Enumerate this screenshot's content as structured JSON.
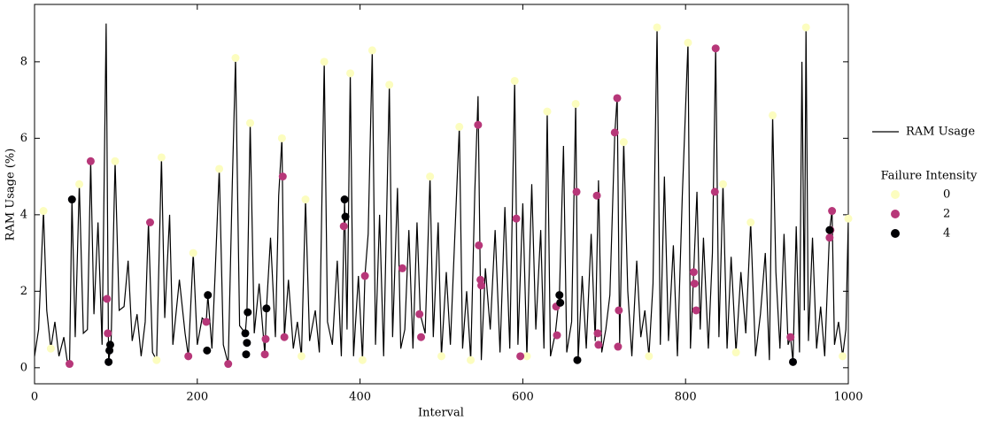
{
  "chart_data": {
    "type": "line",
    "xlabel": "Interval",
    "ylabel": "RAM Usage (%)",
    "xlim": [
      0,
      1000
    ],
    "ylim": [
      -0.42,
      9.5
    ],
    "xticks": [
      0,
      200,
      400,
      600,
      800,
      1000
    ],
    "yticks": [
      0,
      2,
      4,
      6,
      8
    ],
    "legend_title": "Failure Intensity",
    "series": [
      {
        "name": "RAM Usage",
        "kind": "line",
        "color": "#000000",
        "x": [
          0,
          5,
          11,
          15,
          20,
          25,
          30,
          36,
          40,
          43,
          46,
          50,
          55,
          60,
          65,
          69,
          73,
          78,
          83,
          88,
          91,
          94,
          99,
          104,
          110,
          115,
          120,
          126,
          131,
          136,
          140,
          145,
          150,
          156,
          160,
          166,
          170,
          178,
          185,
          189,
          195,
          200,
          206,
          211,
          213,
          218,
          222,
          227,
          232,
          238,
          243,
          247,
          252,
          259,
          261,
          265,
          270,
          276,
          283,
          285,
          290,
          296,
          300,
          304,
          307,
          312,
          318,
          323,
          328,
          333,
          338,
          345,
          350,
          356,
          360,
          366,
          372,
          377,
          381,
          384,
          388,
          392,
          398,
          403,
          406,
          410,
          415,
          419,
          424,
          429,
          436,
          440,
          446,
          450,
          455,
          460,
          465,
          470,
          474,
          480,
          486,
          490,
          496,
          500,
          506,
          511,
          516,
          522,
          526,
          531,
          536,
          541,
          545,
          549,
          554,
          560,
          566,
          572,
          578,
          584,
          590,
          594,
          600,
          605,
          611,
          616,
          622,
          626,
          630,
          634,
          640,
          645,
          650,
          654,
          660,
          665,
          668,
          673,
          678,
          684,
          689,
          693,
          697,
          702,
          707,
          713,
          716,
          719,
          724,
          729,
          734,
          740,
          745,
          750,
          755,
          760,
          765,
          769,
          774,
          779,
          785,
          790,
          796,
          803,
          806,
          810,
          814,
          818,
          822,
          828,
          833,
          837,
          841,
          846,
          851,
          856,
          862,
          868,
          874,
          880,
          886,
          892,
          898,
          903,
          907,
          911,
          916,
          921,
          926,
          929,
          932,
          936,
          940,
          943,
          946,
          948,
          951,
          956,
          961,
          966,
          971,
          977,
          980,
          983,
          988,
          993,
          997,
          1000
        ],
        "values": [
          0.3,
          1.0,
          4.1,
          1.5,
          0.5,
          1.2,
          0.3,
          0.8,
          0.2,
          0.1,
          4.4,
          0.8,
          4.8,
          0.9,
          1.0,
          5.4,
          1.4,
          3.8,
          0.6,
          9.0,
          0.15,
          0.6,
          5.4,
          1.5,
          1.6,
          2.8,
          0.7,
          1.4,
          0.3,
          1.2,
          3.8,
          0.4,
          0.2,
          5.5,
          1.3,
          4.0,
          0.6,
          2.3,
          0.9,
          0.3,
          3.0,
          0.6,
          1.3,
          1.2,
          1.9,
          0.5,
          2.5,
          5.2,
          0.6,
          0.1,
          4.8,
          8.1,
          1.1,
          0.9,
          1.45,
          6.4,
          0.9,
          2.2,
          0.35,
          1.55,
          3.4,
          0.8,
          4.5,
          6.0,
          0.8,
          2.3,
          0.5,
          1.2,
          0.3,
          4.4,
          0.7,
          1.5,
          0.4,
          8.0,
          1.2,
          0.6,
          2.8,
          0.3,
          4.4,
          1.0,
          7.7,
          0.3,
          2.4,
          0.2,
          2.4,
          3.5,
          8.3,
          0.6,
          4.0,
          0.3,
          7.4,
          0.8,
          4.7,
          0.5,
          1.0,
          3.6,
          0.5,
          3.8,
          1.4,
          0.9,
          5.0,
          0.8,
          3.8,
          0.3,
          2.5,
          0.6,
          3.2,
          6.3,
          0.5,
          2.0,
          0.2,
          4.6,
          7.1,
          0.2,
          2.6,
          1.0,
          3.6,
          0.4,
          4.2,
          0.5,
          7.5,
          0.6,
          4.3,
          0.3,
          4.8,
          1.0,
          3.6,
          0.5,
          6.7,
          0.3,
          0.9,
          1.9,
          5.8,
          0.4,
          1.2,
          6.9,
          0.2,
          2.4,
          0.5,
          3.5,
          0.7,
          4.9,
          0.4,
          1.0,
          1.9,
          6.1,
          7.1,
          0.6,
          5.9,
          2.0,
          0.3,
          2.8,
          0.8,
          1.5,
          0.3,
          2.2,
          8.9,
          0.6,
          5.0,
          0.7,
          3.2,
          0.3,
          4.5,
          8.5,
          0.5,
          2.5,
          4.6,
          1.0,
          3.4,
          0.5,
          3.0,
          8.4,
          0.8,
          4.8,
          0.5,
          2.9,
          0.4,
          2.5,
          0.9,
          3.8,
          0.3,
          1.4,
          3.0,
          0.2,
          6.6,
          2.5,
          0.5,
          3.5,
          0.6,
          0.8,
          0.15,
          3.7,
          0.4,
          8.0,
          1.5,
          8.9,
          0.7,
          3.4,
          0.5,
          1.6,
          0.3,
          3.6,
          4.1,
          0.6,
          1.2,
          0.3,
          1.0,
          3.9
        ]
      },
      {
        "name": "0",
        "kind": "scatter",
        "color": "#fcfdbf",
        "x": [
          11,
          55,
          99,
          156,
          195,
          227,
          247,
          265,
          304,
          333,
          356,
          388,
          415,
          436,
          486,
          522,
          590,
          630,
          665,
          724,
          765,
          803,
          846,
          880,
          907,
          948,
          1000,
          20,
          150,
          328,
          403,
          500,
          536,
          605,
          755,
          862,
          993
        ],
        "values": [
          4.1,
          4.8,
          5.4,
          5.5,
          3.0,
          5.2,
          8.1,
          6.4,
          6.0,
          4.4,
          8.0,
          7.7,
          8.3,
          7.4,
          5.0,
          6.3,
          7.5,
          6.7,
          6.9,
          5.9,
          8.9,
          8.5,
          4.8,
          3.8,
          6.6,
          8.9,
          3.9,
          0.5,
          0.2,
          0.3,
          0.2,
          0.3,
          0.2,
          0.3,
          0.3,
          0.4,
          0.3
        ]
      },
      {
        "name": "2",
        "kind": "scatter",
        "color": "#b73779",
        "x": [
          43,
          69,
          89,
          90,
          142,
          189,
          211,
          238,
          283,
          284,
          305,
          307,
          380,
          406,
          452,
          473,
          475,
          545,
          546,
          548,
          549,
          592,
          597,
          641,
          642,
          666,
          691,
          692,
          693,
          713,
          716,
          717,
          718,
          810,
          811,
          813,
          836,
          837,
          929,
          977,
          980,
          978
        ],
        "values": [
          0.1,
          5.4,
          1.8,
          0.9,
          3.8,
          0.3,
          1.2,
          0.1,
          0.35,
          0.75,
          5.0,
          0.8,
          3.7,
          2.4,
          2.6,
          1.4,
          0.8,
          6.35,
          3.2,
          2.3,
          2.15,
          3.9,
          0.3,
          1.6,
          0.85,
          4.6,
          4.5,
          0.9,
          0.6,
          6.15,
          7.05,
          0.55,
          1.5,
          2.5,
          2.2,
          1.5,
          4.6,
          8.35,
          0.8,
          3.4,
          4.1,
          3.6
        ]
      },
      {
        "name": "4",
        "kind": "scatter",
        "color": "#000004",
        "x": [
          46,
          91,
          93,
          92,
          213,
          212,
          259,
          260,
          261,
          262,
          285,
          381,
          382,
          645,
          646,
          667,
          932,
          977
        ],
        "values": [
          4.4,
          0.15,
          0.6,
          0.45,
          1.9,
          0.45,
          0.9,
          0.35,
          0.65,
          1.45,
          1.55,
          4.4,
          3.95,
          1.9,
          1.7,
          0.2,
          0.15,
          3.6
        ]
      }
    ]
  }
}
